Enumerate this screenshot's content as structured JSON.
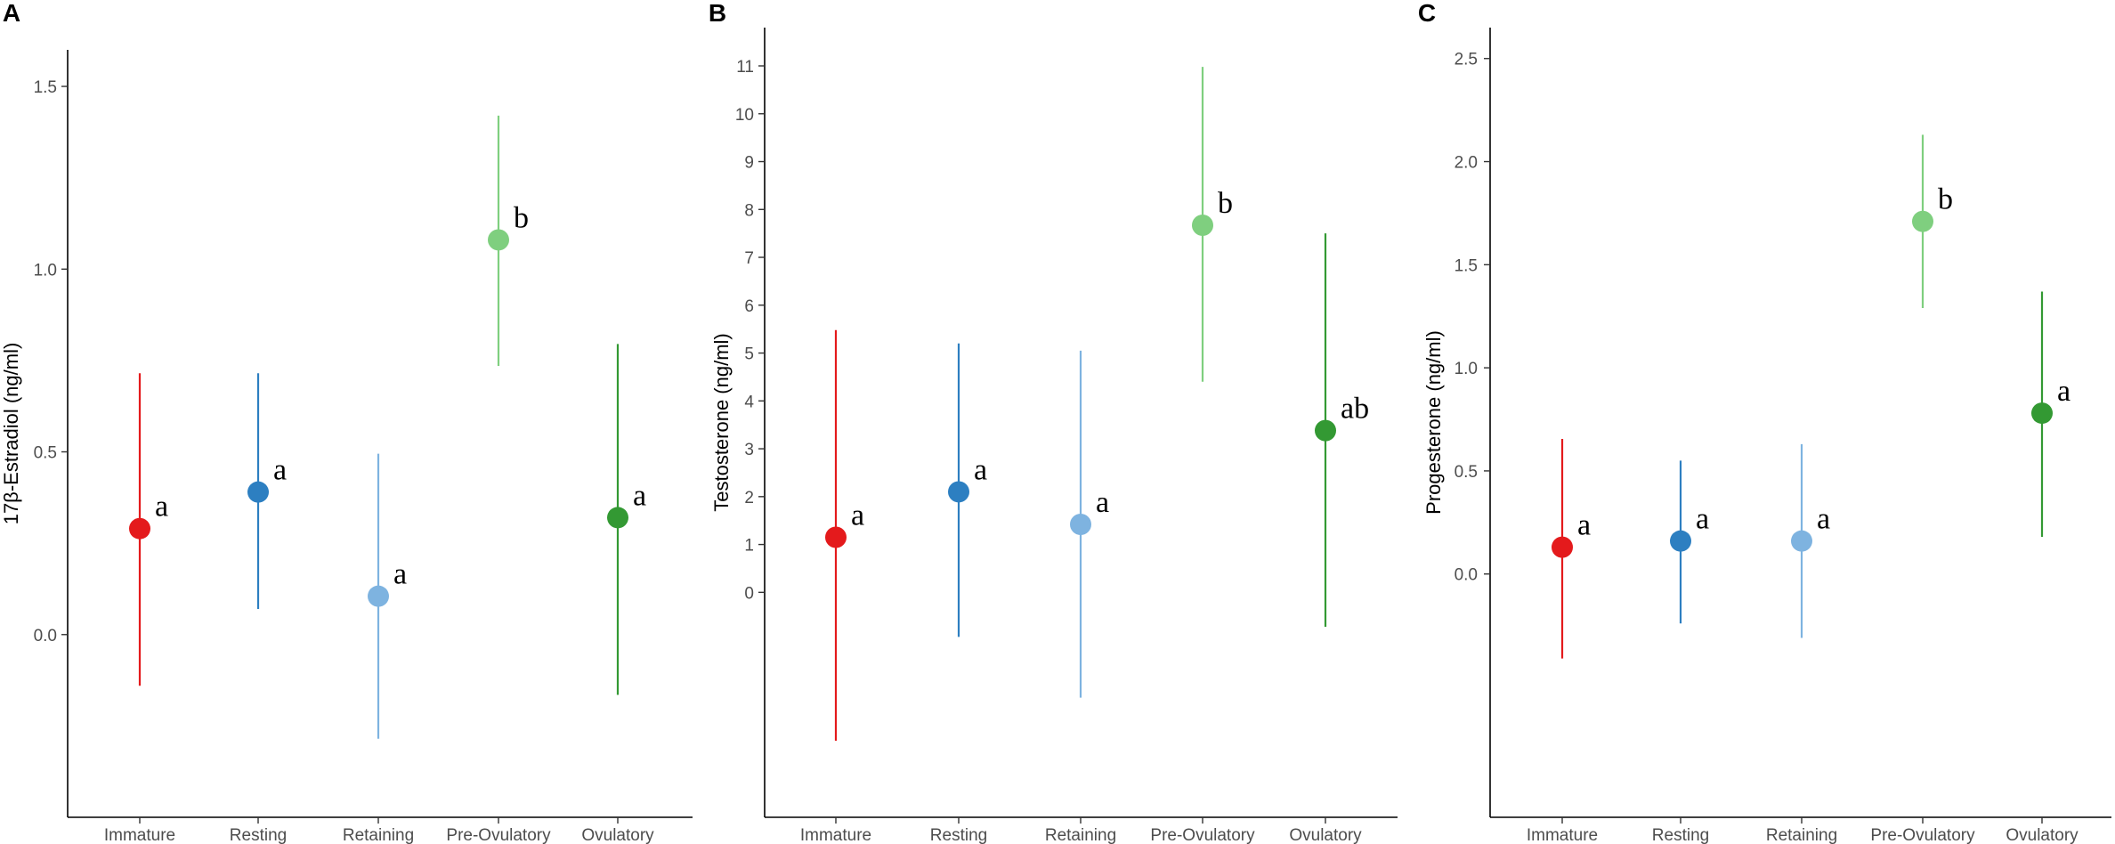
{
  "chart_data": [
    {
      "type": "scatter",
      "panel_label": "A",
      "ylabel": "17β-Estradiol (ng/ml)",
      "xlabel": "",
      "categories": [
        "Immature",
        "Resting",
        "Retaining",
        "Pre-Ovulatory",
        "Ovulatory"
      ],
      "yticks": [
        0.0,
        0.5,
        1.0,
        1.5
      ],
      "ytick_labels": [
        "0.0",
        "0.5",
        "1.0",
        "1.5"
      ],
      "ylim": [
        -0.5,
        1.6
      ],
      "colors": [
        "#e41a1c",
        "#2d7fc1",
        "#7eb3e0",
        "#7fcf7f",
        "#339933"
      ],
      "values": [
        0.29,
        0.39,
        0.105,
        1.08,
        0.32
      ],
      "lower": [
        -0.14,
        0.07,
        -0.285,
        0.735,
        -0.165
      ],
      "upper": [
        0.715,
        0.715,
        0.495,
        1.42,
        0.795
      ],
      "letters": [
        "a",
        "a",
        "a",
        "b",
        "a"
      ],
      "grid": false
    },
    {
      "type": "scatter",
      "panel_label": "B",
      "ylabel": "Testosterone (ng/ml)",
      "xlabel": "",
      "categories": [
        "Immature",
        "Resting",
        "Retaining",
        "Pre-Ovulatory",
        "Ovulatory"
      ],
      "yticks": [
        0,
        1,
        2,
        3,
        4,
        5,
        6,
        7,
        8,
        9,
        10,
        11
      ],
      "ytick_labels": [
        "0",
        "1",
        "2",
        "3",
        "4",
        "5",
        "6",
        "7",
        "8",
        "9",
        "10",
        "11"
      ],
      "ylim": [
        -4.7,
        11.8
      ],
      "colors": [
        "#e41a1c",
        "#2d7fc1",
        "#7eb3e0",
        "#7fcf7f",
        "#339933"
      ],
      "values": [
        1.15,
        2.1,
        1.42,
        7.67,
        3.38
      ],
      "lower": [
        -3.1,
        -0.93,
        -2.2,
        4.4,
        -0.72
      ],
      "upper": [
        5.48,
        5.2,
        5.05,
        10.98,
        7.5
      ],
      "letters": [
        "a",
        "a",
        "a",
        "b",
        "ab"
      ],
      "grid": false
    },
    {
      "type": "scatter",
      "panel_label": "C",
      "ylabel": "Progesterone (ng/ml)",
      "xlabel": "",
      "categories": [
        "Immature",
        "Resting",
        "Retaining",
        "Pre-Ovulatory",
        "Ovulatory"
      ],
      "yticks": [
        0.0,
        0.5,
        1.0,
        1.5,
        2.0,
        2.5
      ],
      "ytick_labels": [
        "0.0",
        "0.5",
        "1.0",
        "1.5",
        "2.0",
        "2.5"
      ],
      "ylim": [
        -1.18,
        2.65
      ],
      "colors": [
        "#e41a1c",
        "#2d7fc1",
        "#7eb3e0",
        "#7fcf7f",
        "#339933"
      ],
      "values": [
        0.13,
        0.16,
        0.16,
        1.71,
        0.78
      ],
      "lower": [
        -0.41,
        -0.24,
        -0.31,
        1.29,
        0.18
      ],
      "upper": [
        0.655,
        0.55,
        0.63,
        2.13,
        1.37
      ],
      "letters": [
        "a",
        "a",
        "a",
        "b",
        "a"
      ],
      "grid": false
    }
  ]
}
